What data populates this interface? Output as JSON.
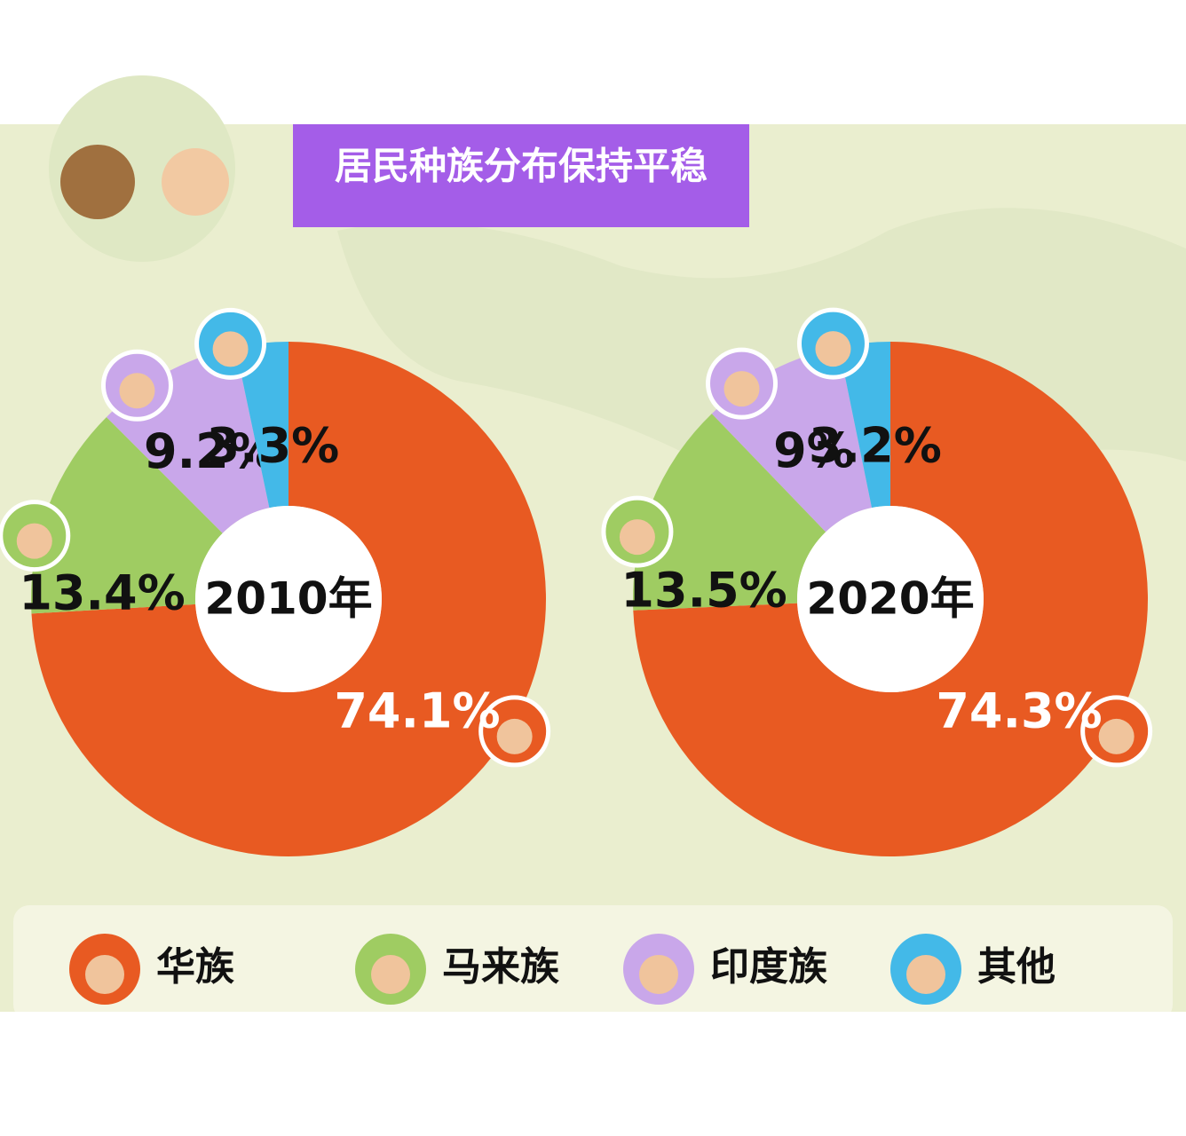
{
  "title": "居民种族分布保持平稳",
  "chart_data": [
    {
      "type": "pie",
      "center_label": "2010年",
      "categories": [
        "华族",
        "马来族",
        "印度族",
        "其他"
      ],
      "values": [
        74.1,
        13.4,
        9.2,
        3.3
      ],
      "value_labels": [
        "74.1%",
        "13.4%",
        "9.2%",
        "3.3%"
      ],
      "colors": [
        "#e85a22",
        "#9fcc62",
        "#c9a7ea",
        "#43b9e8"
      ],
      "label_colors": [
        "#ffffff",
        "#111111",
        "#111111",
        "#111111"
      ]
    },
    {
      "type": "pie",
      "center_label": "2020年",
      "categories": [
        "华族",
        "马来族",
        "印度族",
        "其他"
      ],
      "values": [
        74.3,
        13.5,
        9,
        3.2
      ],
      "value_labels": [
        "74.3%",
        "13.5%",
        "9%",
        "3.2%"
      ],
      "colors": [
        "#e85a22",
        "#9fcc62",
        "#c9a7ea",
        "#43b9e8"
      ],
      "label_colors": [
        "#ffffff",
        "#111111",
        "#111111",
        "#111111"
      ]
    }
  ]
}
